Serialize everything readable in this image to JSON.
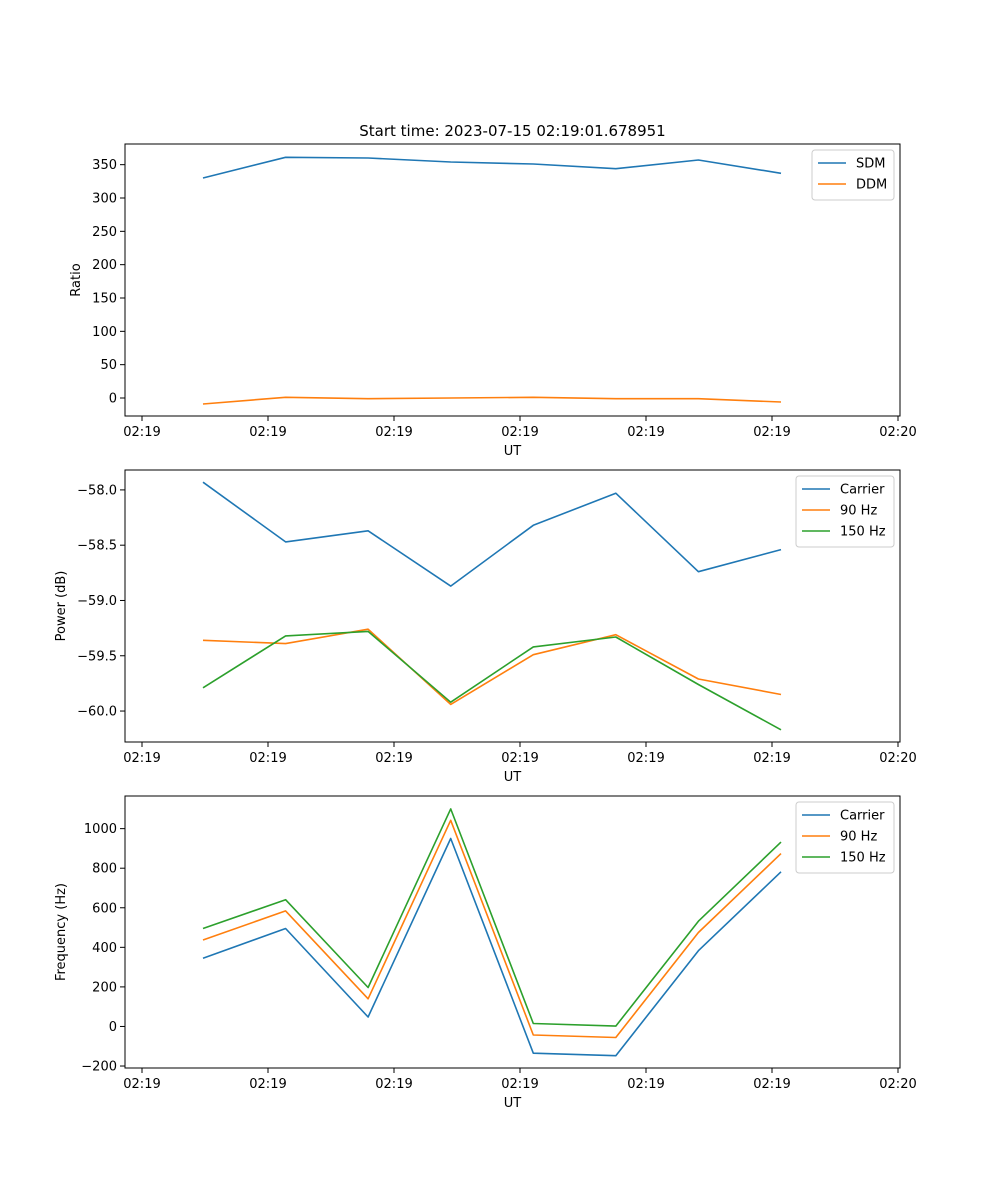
{
  "chart_data": [
    {
      "type": "line",
      "title": "Start time: 2023-07-15 02:19:01.678951",
      "xlabel": "UT",
      "ylabel": "Ratio",
      "x": [
        0,
        1,
        2,
        3,
        4,
        5,
        6,
        7
      ],
      "x_tick_labels": [
        "02:19",
        "02:19",
        "02:19",
        "02:19",
        "02:19",
        "02:19",
        "02:20"
      ],
      "ylim": [
        -27,
        381
      ],
      "yticks": [
        0,
        50,
        100,
        150,
        200,
        250,
        300,
        350
      ],
      "legend_position": "top-right",
      "series": [
        {
          "name": "SDM",
          "color": "#1f77b4",
          "values": [
            330,
            361,
            360,
            354,
            351,
            344,
            357,
            337
          ]
        },
        {
          "name": "DDM",
          "color": "#ff7f0e",
          "values": [
            -9,
            1,
            -1,
            0,
            1,
            -1,
            -1,
            -6
          ]
        }
      ]
    },
    {
      "type": "line",
      "title": "",
      "xlabel": "UT",
      "ylabel": "Power (dB)",
      "x": [
        0,
        1,
        2,
        3,
        4,
        5,
        6,
        7
      ],
      "x_tick_labels": [
        "02:19",
        "02:19",
        "02:19",
        "02:19",
        "02:19",
        "02:19",
        "02:20"
      ],
      "ylim": [
        -60.28,
        -57.82
      ],
      "yticks": [
        -60.0,
        -59.5,
        -59.0,
        -58.5,
        -58.0
      ],
      "legend_position": "top-right",
      "series": [
        {
          "name": "Carrier",
          "color": "#1f77b4",
          "values": [
            -57.93,
            -58.47,
            -58.37,
            -58.87,
            -58.32,
            -58.03,
            -58.74,
            -58.54
          ]
        },
        {
          "name": "90 Hz",
          "color": "#ff7f0e",
          "values": [
            -59.36,
            -59.39,
            -59.26,
            -59.94,
            -59.49,
            -59.31,
            -59.71,
            -59.85
          ]
        },
        {
          "name": "150 Hz",
          "color": "#2ca02c",
          "values": [
            -59.79,
            -59.32,
            -59.28,
            -59.92,
            -59.42,
            -59.33,
            -59.76,
            -60.17
          ]
        }
      ]
    },
    {
      "type": "line",
      "title": "",
      "xlabel": "UT",
      "ylabel": "Frequency (Hz)",
      "x": [
        0,
        1,
        2,
        3,
        4,
        5,
        6,
        7
      ],
      "x_tick_labels": [
        "02:19",
        "02:19",
        "02:19",
        "02:19",
        "02:19",
        "02:19",
        "02:20"
      ],
      "ylim": [
        -210,
        1165
      ],
      "yticks": [
        -200,
        0,
        200,
        400,
        600,
        800,
        1000
      ],
      "legend_position": "top-right",
      "series": [
        {
          "name": "Carrier",
          "color": "#1f77b4",
          "values": [
            345,
            495,
            48,
            950,
            -135,
            -148,
            383,
            782
          ]
        },
        {
          "name": "90 Hz",
          "color": "#ff7f0e",
          "values": [
            437,
            584,
            140,
            1042,
            -43,
            -56,
            475,
            874
          ]
        },
        {
          "name": "150 Hz",
          "color": "#2ca02c",
          "values": [
            495,
            641,
            197,
            1100,
            15,
            2,
            532,
            932
          ]
        }
      ]
    }
  ]
}
